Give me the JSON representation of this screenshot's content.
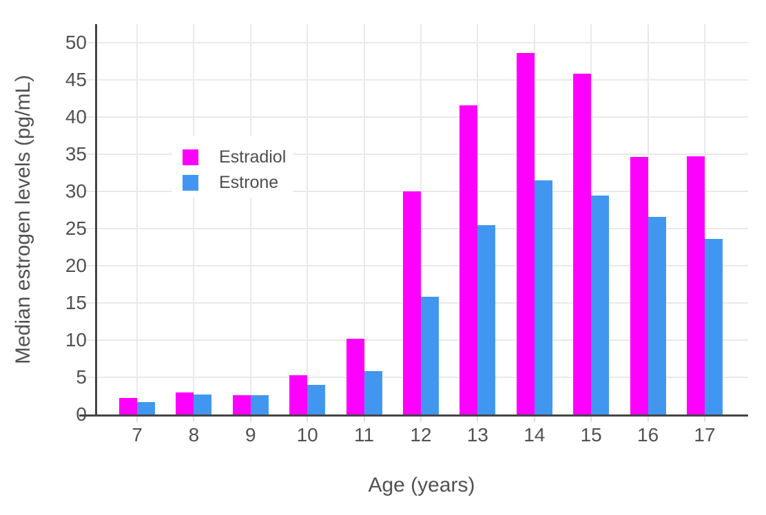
{
  "chart_data": {
    "type": "bar",
    "xlabel": "Age (years)",
    "ylabel": "Median estrogen levels (pg/mL)",
    "categories": [
      "7",
      "8",
      "9",
      "10",
      "11",
      "12",
      "13",
      "14",
      "15",
      "16",
      "17"
    ],
    "series": [
      {
        "name": "Estradiol",
        "color": "#FF00FF",
        "values": [
          2.2,
          3.0,
          2.6,
          5.3,
          10.2,
          30.0,
          41.6,
          48.6,
          45.8,
          34.6,
          34.7
        ]
      },
      {
        "name": "Estrone",
        "color": "#4197F0",
        "values": [
          1.7,
          2.7,
          2.6,
          4.0,
          5.8,
          15.8,
          25.5,
          31.5,
          29.4,
          26.6,
          23.6
        ]
      }
    ],
    "yticks": [
      0,
      5,
      10,
      15,
      20,
      25,
      30,
      35,
      40,
      45,
      50
    ],
    "ylim": [
      0,
      52.5
    ],
    "grid": true,
    "legend_position": "inside-upper-left",
    "colors": {
      "background": "#FFFFFF",
      "axis": "#444444",
      "grid": "#E9E9E9",
      "text": "#515151"
    }
  },
  "legend": {
    "items": [
      {
        "label": "Estradiol"
      },
      {
        "label": "Estrone"
      }
    ]
  }
}
